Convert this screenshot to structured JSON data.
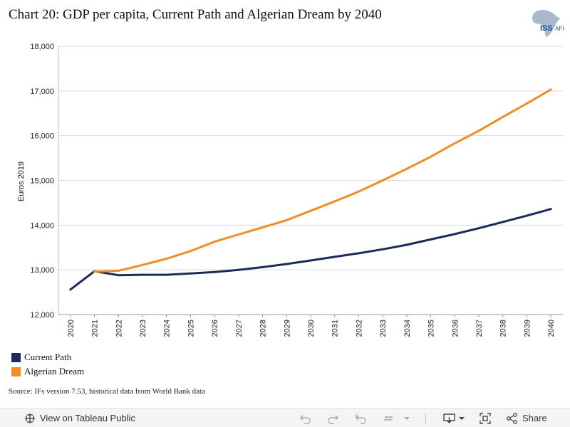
{
  "title": "Chart 20: GDP per capita, Current Path and Algerian Dream by 2040",
  "logo": {
    "text": "ISS",
    "sub": "AFI"
  },
  "source": "Source: IFs version 7.53, historical data from World Bank data",
  "footer": {
    "view_label": "View on Tableau Public",
    "share_label": "Share"
  },
  "colors": {
    "current_path": "#1b2a5a",
    "algerian_dream": "#f28c28",
    "grid": "#d9d9d9",
    "axis": "#555555",
    "logo_map": "#a9b9cc"
  },
  "chart_data": {
    "type": "line",
    "ylabel": "Euros 2019",
    "xlabel": "",
    "ylim": [
      12000,
      18000
    ],
    "yticks": [
      12000,
      13000,
      14000,
      15000,
      16000,
      17000,
      18000
    ],
    "ytick_labels": [
      "12,000",
      "13,000",
      "14,000",
      "15,000",
      "16,000",
      "17,000",
      "18,000"
    ],
    "grid": true,
    "legend_position": "bottom-left",
    "x": [
      "2020",
      "2021",
      "2022",
      "2023",
      "2024",
      "2025",
      "2026",
      "2027",
      "2028",
      "2029",
      "2030",
      "2031",
      "2032",
      "2033",
      "2034",
      "2035",
      "2036",
      "2037",
      "2038",
      "2039",
      "2040"
    ],
    "series": [
      {
        "name": "Current Path",
        "color": "#1b2a5a",
        "values": [
          12560,
          12970,
          12880,
          12890,
          12890,
          12920,
          12950,
          13000,
          13060,
          13130,
          13210,
          13290,
          13370,
          13460,
          13560,
          13680,
          13800,
          13930,
          14070,
          14210,
          14360
        ]
      },
      {
        "name": "Algerian Dream",
        "color": "#f28c28",
        "x_start": "2021",
        "values": [
          null,
          12960,
          12980,
          13110,
          13250,
          13420,
          13630,
          13790,
          13950,
          14110,
          14320,
          14530,
          14750,
          15000,
          15260,
          15530,
          15830,
          16110,
          16420,
          16720,
          17030
        ]
      }
    ]
  }
}
